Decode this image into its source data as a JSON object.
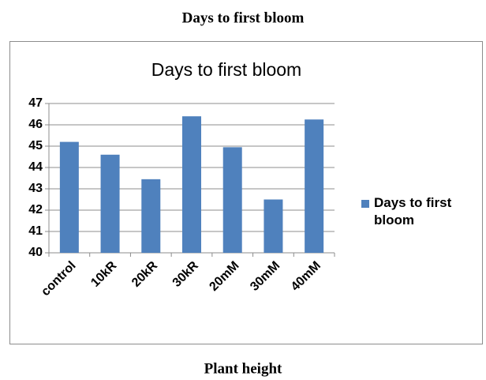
{
  "heading": "Days to first bloom",
  "next_heading": "Plant height",
  "chart_data": {
    "type": "bar",
    "title": "Days to first bloom",
    "categories": [
      "control",
      "10kR",
      "20kR",
      "30kR",
      "20mM",
      "30mM",
      "40mM"
    ],
    "series": [
      {
        "name": "Days to first bloom",
        "color": "#4f81bd",
        "values": [
          45.2,
          44.6,
          43.45,
          46.4,
          44.95,
          42.5,
          46.25
        ]
      }
    ],
    "ylim": [
      40,
      47
    ],
    "yticks": [
      40,
      41,
      42,
      43,
      44,
      45,
      46,
      47
    ],
    "grid": true,
    "legend": "right"
  }
}
